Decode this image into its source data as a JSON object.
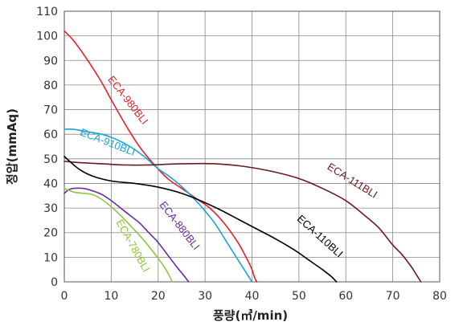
{
  "chart_data": {
    "type": "line",
    "xlabel": "풍량(㎥/min)",
    "ylabel": "정압(mmAq)",
    "xlim": [
      0,
      80
    ],
    "ylim": [
      0,
      110
    ],
    "xticks": [
      "0",
      "10",
      "20",
      "30",
      "40",
      "50",
      "60",
      "70",
      "80"
    ],
    "yticks": [
      "0",
      "10",
      "20",
      "30",
      "40",
      "50",
      "60",
      "70",
      "80",
      "90",
      "100",
      "110"
    ],
    "grid": true,
    "series": [
      {
        "name": "ECA-980BLI",
        "color": "#e8202a",
        "x": [
          0,
          2,
          5,
          8,
          10,
          13,
          16,
          19,
          22,
          25,
          28,
          31,
          34,
          37,
          39,
          40,
          40.5,
          41
        ],
        "y": [
          102,
          98,
          90,
          81,
          74,
          64,
          55,
          48,
          42,
          38,
          34,
          30,
          24,
          16,
          9,
          5,
          2,
          0
        ]
      },
      {
        "name": "ECA-910BLI",
        "color": "#1aa3d0",
        "x": [
          0,
          2,
          5,
          8,
          11,
          14,
          17,
          20,
          23,
          26,
          29,
          32,
          35,
          37,
          39,
          40
        ],
        "y": [
          62,
          62,
          61,
          60,
          58,
          55,
          51,
          46,
          42,
          37,
          31,
          24,
          15,
          9,
          3,
          0
        ]
      },
      {
        "name": "ECA-111BLI",
        "color": "#6b1a1e",
        "x": [
          0,
          3,
          8,
          13,
          18,
          25,
          32,
          38,
          44,
          50,
          55,
          60,
          64,
          67,
          70,
          72,
          74,
          75,
          76
        ],
        "y": [
          49,
          48.5,
          48,
          47.5,
          47.5,
          48,
          48,
          47,
          45,
          42,
          38,
          33,
          27,
          22,
          15,
          11,
          6,
          3,
          0
        ]
      },
      {
        "name": "ECA-110BLI",
        "color": "#000000",
        "x": [
          0,
          3,
          6,
          10,
          15,
          20,
          25,
          29,
          33,
          37,
          41,
          45,
          49,
          52,
          55,
          57,
          58
        ],
        "y": [
          51,
          46,
          43,
          41,
          40,
          38.5,
          36,
          33,
          29.5,
          25.5,
          21.5,
          17.5,
          13,
          9,
          5,
          2,
          0
        ]
      },
      {
        "name": "ECA-880BLI",
        "color": "#6b2a9b",
        "x": [
          0,
          1,
          2,
          4,
          6,
          8,
          10,
          12,
          14,
          16,
          18,
          20,
          22,
          24,
          25.5,
          26.5
        ],
        "y": [
          36,
          37.5,
          38,
          38,
          37,
          35.5,
          33,
          30,
          27,
          24,
          20,
          16,
          11,
          6,
          2.5,
          0
        ]
      },
      {
        "name": "ECA-780BLI",
        "color": "#8dc63f",
        "x": [
          0,
          2,
          4,
          6,
          8,
          10,
          12,
          14,
          16,
          18,
          20,
          21.5,
          22.5,
          23
        ],
        "y": [
          38,
          36.5,
          36,
          35.5,
          33.5,
          30.5,
          27,
          23,
          19,
          14.5,
          9.5,
          5.5,
          2,
          0
        ]
      }
    ],
    "labels": [
      {
        "text": "ECA-980BLI",
        "series": "ECA-980BLI",
        "at": [
          13,
          73
        ],
        "rotate": 52
      },
      {
        "text": "ECA-910BLI",
        "series": "ECA-910BLI",
        "at": [
          9,
          55.5
        ],
        "rotate": 21
      },
      {
        "text": "ECA-111BLI",
        "series": "ECA-111BLI",
        "at": [
          61,
          40
        ],
        "rotate": 32
      },
      {
        "text": "ECA-110BLI",
        "series": "ECA-110BLI",
        "at": [
          54,
          17.5
        ],
        "rotate": 42
      },
      {
        "text": "ECA-880BLI",
        "series": "ECA-880BLI",
        "at": [
          24,
          22
        ],
        "rotate": 52
      },
      {
        "text": "ECA-780BLI",
        "series": "ECA-780BLI",
        "at": [
          14,
          14
        ],
        "rotate": 61
      }
    ]
  }
}
